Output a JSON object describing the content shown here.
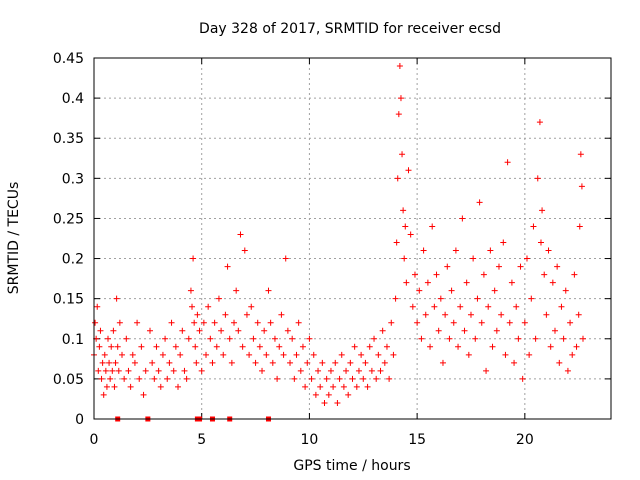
{
  "chart_data": {
    "type": "scatter",
    "title": "Day 328 of 2017, SRMTID for receiver ecsd",
    "xlabel": "GPS time / hours",
    "ylabel": "SRMTID / TECUs",
    "xlim": [
      0,
      24
    ],
    "ylim": [
      0,
      0.45
    ],
    "grid": true,
    "marker": "+",
    "marker_color": "#ff0000",
    "x_ticks": [
      0,
      5,
      10,
      15,
      20
    ],
    "x_tick_labels": [
      "0",
      "5",
      "10",
      "15",
      "20"
    ],
    "y_ticks": [
      0,
      0.05,
      0.1,
      0.15,
      0.2,
      0.25,
      0.3,
      0.35,
      0.4,
      0.45
    ],
    "y_tick_labels": [
      "0",
      "0.05",
      "0.1",
      "0.15",
      "0.2",
      "0.25",
      "0.3",
      "0.35",
      "0.4",
      "0.45"
    ],
    "gap_markers_x": [
      1.1,
      2.5,
      4.8,
      4.9,
      5.5,
      6.3,
      8.1
    ],
    "series": [
      {
        "name": "SRMTID",
        "points": [
          [
            0.0,
            0.08
          ],
          [
            0.05,
            0.12
          ],
          [
            0.1,
            0.1
          ],
          [
            0.15,
            0.14
          ],
          [
            0.2,
            0.06
          ],
          [
            0.25,
            0.09
          ],
          [
            0.3,
            0.11
          ],
          [
            0.35,
            0.05
          ],
          [
            0.4,
            0.07
          ],
          [
            0.45,
            0.03
          ],
          [
            0.5,
            0.08
          ],
          [
            0.55,
            0.06
          ],
          [
            0.6,
            0.04
          ],
          [
            0.65,
            0.1
          ],
          [
            0.7,
            0.07
          ],
          [
            0.75,
            0.05
          ],
          [
            0.8,
            0.09
          ],
          [
            0.85,
            0.06
          ],
          [
            0.9,
            0.11
          ],
          [
            0.95,
            0.04
          ],
          [
            1.0,
            0.07
          ],
          [
            1.05,
            0.15
          ],
          [
            1.1,
            0.09
          ],
          [
            1.15,
            0.06
          ],
          [
            1.2,
            0.12
          ],
          [
            1.3,
            0.08
          ],
          [
            1.4,
            0.05
          ],
          [
            1.5,
            0.1
          ],
          [
            1.6,
            0.06
          ],
          [
            1.7,
            0.04
          ],
          [
            1.8,
            0.08
          ],
          [
            1.9,
            0.07
          ],
          [
            2.0,
            0.12
          ],
          [
            2.1,
            0.05
          ],
          [
            2.2,
            0.09
          ],
          [
            2.3,
            0.03
          ],
          [
            2.4,
            0.06
          ],
          [
            2.6,
            0.11
          ],
          [
            2.7,
            0.07
          ],
          [
            2.8,
            0.05
          ],
          [
            2.9,
            0.09
          ],
          [
            3.0,
            0.06
          ],
          [
            3.1,
            0.04
          ],
          [
            3.2,
            0.08
          ],
          [
            3.3,
            0.1
          ],
          [
            3.4,
            0.05
          ],
          [
            3.5,
            0.07
          ],
          [
            3.6,
            0.12
          ],
          [
            3.7,
            0.06
          ],
          [
            3.8,
            0.09
          ],
          [
            3.9,
            0.04
          ],
          [
            4.0,
            0.08
          ],
          [
            4.1,
            0.11
          ],
          [
            4.2,
            0.06
          ],
          [
            4.3,
            0.05
          ],
          [
            4.4,
            0.1
          ],
          [
            4.5,
            0.16
          ],
          [
            4.55,
            0.14
          ],
          [
            4.6,
            0.2
          ],
          [
            4.65,
            0.12
          ],
          [
            4.7,
            0.09
          ],
          [
            4.75,
            0.07
          ],
          [
            4.8,
            0.13
          ],
          [
            4.9,
            0.11
          ],
          [
            5.0,
            0.06
          ],
          [
            5.1,
            0.12
          ],
          [
            5.2,
            0.08
          ],
          [
            5.3,
            0.14
          ],
          [
            5.4,
            0.1
          ],
          [
            5.5,
            0.07
          ],
          [
            5.6,
            0.12
          ],
          [
            5.7,
            0.09
          ],
          [
            5.8,
            0.15
          ],
          [
            5.9,
            0.11
          ],
          [
            6.0,
            0.08
          ],
          [
            6.1,
            0.13
          ],
          [
            6.2,
            0.19
          ],
          [
            6.3,
            0.1
          ],
          [
            6.4,
            0.07
          ],
          [
            6.5,
            0.12
          ],
          [
            6.6,
            0.16
          ],
          [
            6.7,
            0.11
          ],
          [
            6.8,
            0.23
          ],
          [
            6.9,
            0.09
          ],
          [
            7.0,
            0.21
          ],
          [
            7.1,
            0.13
          ],
          [
            7.2,
            0.08
          ],
          [
            7.3,
            0.14
          ],
          [
            7.4,
            0.1
          ],
          [
            7.5,
            0.07
          ],
          [
            7.6,
            0.12
          ],
          [
            7.7,
            0.09
          ],
          [
            7.8,
            0.06
          ],
          [
            7.9,
            0.11
          ],
          [
            8.0,
            0.08
          ],
          [
            8.1,
            0.16
          ],
          [
            8.2,
            0.12
          ],
          [
            8.3,
            0.07
          ],
          [
            8.4,
            0.1
          ],
          [
            8.5,
            0.05
          ],
          [
            8.6,
            0.09
          ],
          [
            8.7,
            0.13
          ],
          [
            8.8,
            0.08
          ],
          [
            8.9,
            0.2
          ],
          [
            9.0,
            0.11
          ],
          [
            9.1,
            0.07
          ],
          [
            9.2,
            0.1
          ],
          [
            9.3,
            0.05
          ],
          [
            9.4,
            0.08
          ],
          [
            9.5,
            0.12
          ],
          [
            9.6,
            0.06
          ],
          [
            9.7,
            0.09
          ],
          [
            9.8,
            0.04
          ],
          [
            9.9,
            0.07
          ],
          [
            10.0,
            0.1
          ],
          [
            10.1,
            0.05
          ],
          [
            10.2,
            0.08
          ],
          [
            10.3,
            0.03
          ],
          [
            10.4,
            0.06
          ],
          [
            10.5,
            0.04
          ],
          [
            10.6,
            0.07
          ],
          [
            10.7,
            0.02
          ],
          [
            10.8,
            0.05
          ],
          [
            10.9,
            0.03
          ],
          [
            11.0,
            0.06
          ],
          [
            11.1,
            0.04
          ],
          [
            11.2,
            0.07
          ],
          [
            11.3,
            0.02
          ],
          [
            11.4,
            0.05
          ],
          [
            11.5,
            0.08
          ],
          [
            11.6,
            0.04
          ],
          [
            11.7,
            0.06
          ],
          [
            11.8,
            0.03
          ],
          [
            11.9,
            0.07
          ],
          [
            12.0,
            0.05
          ],
          [
            12.1,
            0.09
          ],
          [
            12.2,
            0.04
          ],
          [
            12.3,
            0.06
          ],
          [
            12.4,
            0.08
          ],
          [
            12.5,
            0.05
          ],
          [
            12.6,
            0.07
          ],
          [
            12.7,
            0.04
          ],
          [
            12.8,
            0.09
          ],
          [
            12.9,
            0.06
          ],
          [
            13.0,
            0.1
          ],
          [
            13.1,
            0.05
          ],
          [
            13.2,
            0.08
          ],
          [
            13.3,
            0.06
          ],
          [
            13.4,
            0.11
          ],
          [
            13.5,
            0.07
          ],
          [
            13.6,
            0.09
          ],
          [
            13.7,
            0.05
          ],
          [
            13.8,
            0.12
          ],
          [
            13.9,
            0.08
          ],
          [
            14.0,
            0.15
          ],
          [
            14.05,
            0.22
          ],
          [
            14.1,
            0.3
          ],
          [
            14.15,
            0.38
          ],
          [
            14.2,
            0.44
          ],
          [
            14.25,
            0.4
          ],
          [
            14.3,
            0.33
          ],
          [
            14.35,
            0.26
          ],
          [
            14.4,
            0.2
          ],
          [
            14.45,
            0.24
          ],
          [
            14.5,
            0.17
          ],
          [
            14.6,
            0.31
          ],
          [
            14.7,
            0.23
          ],
          [
            14.8,
            0.14
          ],
          [
            14.9,
            0.18
          ],
          [
            15.0,
            0.12
          ],
          [
            15.1,
            0.16
          ],
          [
            15.2,
            0.1
          ],
          [
            15.3,
            0.21
          ],
          [
            15.4,
            0.13
          ],
          [
            15.5,
            0.17
          ],
          [
            15.6,
            0.09
          ],
          [
            15.7,
            0.24
          ],
          [
            15.8,
            0.14
          ],
          [
            15.9,
            0.18
          ],
          [
            16.0,
            0.11
          ],
          [
            16.1,
            0.15
          ],
          [
            16.2,
            0.07
          ],
          [
            16.3,
            0.13
          ],
          [
            16.4,
            0.19
          ],
          [
            16.5,
            0.1
          ],
          [
            16.6,
            0.16
          ],
          [
            16.7,
            0.12
          ],
          [
            16.8,
            0.21
          ],
          [
            16.9,
            0.09
          ],
          [
            17.0,
            0.14
          ],
          [
            17.1,
            0.25
          ],
          [
            17.2,
            0.11
          ],
          [
            17.3,
            0.17
          ],
          [
            17.4,
            0.08
          ],
          [
            17.5,
            0.13
          ],
          [
            17.6,
            0.2
          ],
          [
            17.7,
            0.1
          ],
          [
            17.8,
            0.15
          ],
          [
            17.9,
            0.27
          ],
          [
            18.0,
            0.12
          ],
          [
            18.1,
            0.18
          ],
          [
            18.2,
            0.06
          ],
          [
            18.3,
            0.14
          ],
          [
            18.4,
            0.21
          ],
          [
            18.5,
            0.09
          ],
          [
            18.6,
            0.16
          ],
          [
            18.7,
            0.11
          ],
          [
            18.8,
            0.19
          ],
          [
            18.9,
            0.13
          ],
          [
            19.0,
            0.22
          ],
          [
            19.1,
            0.08
          ],
          [
            19.2,
            0.32
          ],
          [
            19.3,
            0.12
          ],
          [
            19.4,
            0.17
          ],
          [
            19.5,
            0.07
          ],
          [
            19.6,
            0.14
          ],
          [
            19.7,
            0.1
          ],
          [
            19.8,
            0.19
          ],
          [
            19.9,
            0.05
          ],
          [
            20.0,
            0.12
          ],
          [
            20.1,
            0.2
          ],
          [
            20.2,
            0.08
          ],
          [
            20.3,
            0.15
          ],
          [
            20.4,
            0.24
          ],
          [
            20.5,
            0.1
          ],
          [
            20.6,
            0.3
          ],
          [
            20.7,
            0.37
          ],
          [
            20.75,
            0.22
          ],
          [
            20.8,
            0.26
          ],
          [
            20.9,
            0.18
          ],
          [
            21.0,
            0.13
          ],
          [
            21.1,
            0.21
          ],
          [
            21.2,
            0.09
          ],
          [
            21.3,
            0.17
          ],
          [
            21.4,
            0.11
          ],
          [
            21.5,
            0.19
          ],
          [
            21.6,
            0.07
          ],
          [
            21.7,
            0.14
          ],
          [
            21.8,
            0.1
          ],
          [
            21.9,
            0.16
          ],
          [
            22.0,
            0.06
          ],
          [
            22.1,
            0.12
          ],
          [
            22.2,
            0.08
          ],
          [
            22.3,
            0.18
          ],
          [
            22.4,
            0.09
          ],
          [
            22.5,
            0.13
          ],
          [
            22.55,
            0.24
          ],
          [
            22.6,
            0.33
          ],
          [
            22.65,
            0.29
          ],
          [
            22.7,
            0.1
          ]
        ]
      }
    ]
  }
}
